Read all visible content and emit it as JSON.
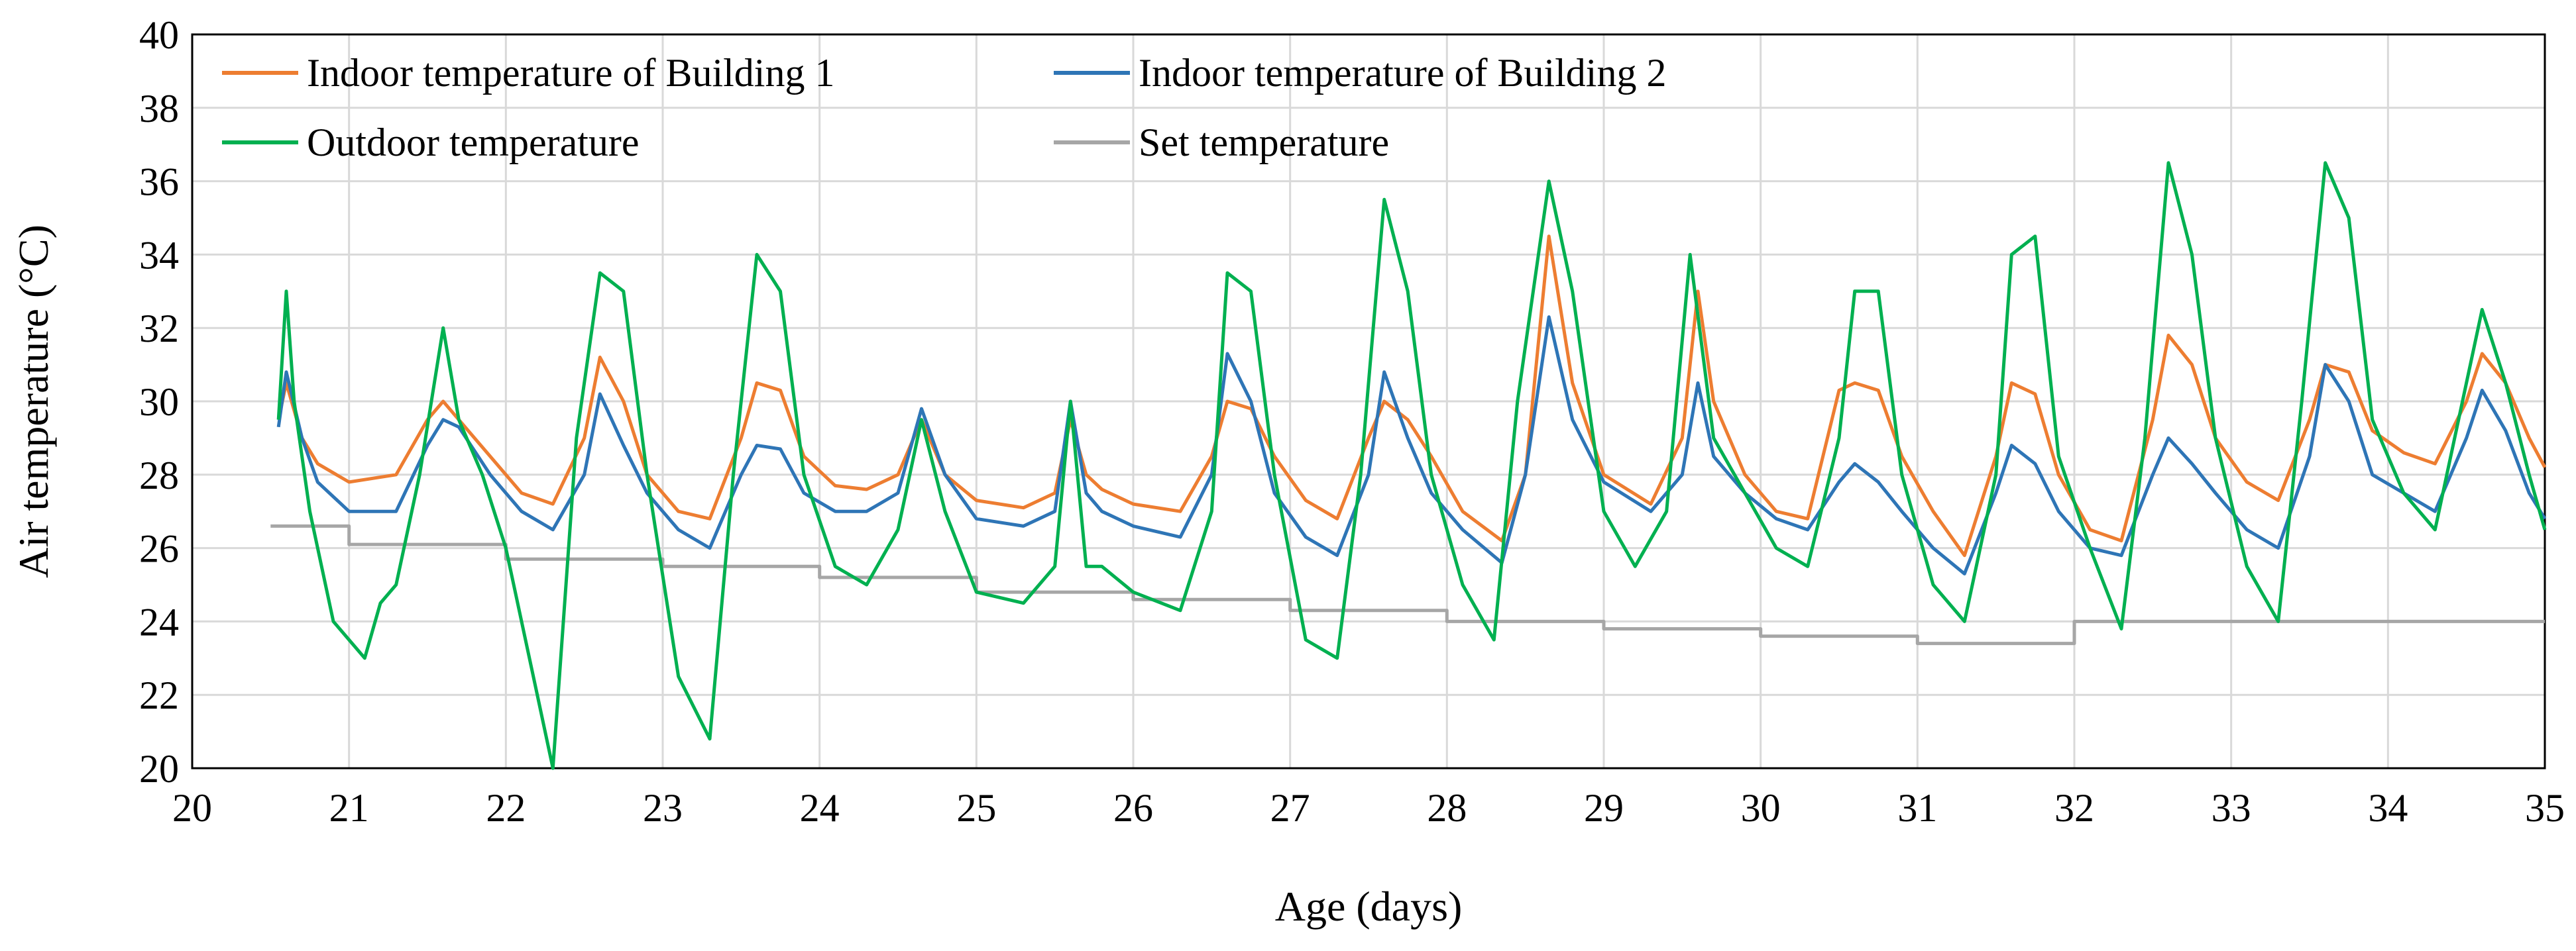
{
  "chart_data": {
    "type": "line",
    "xlabel": "Age (days)",
    "ylabel": "Air temperature (°C)",
    "xlim": [
      20,
      35
    ],
    "ylim": [
      20,
      40
    ],
    "x_ticks": [
      20,
      21,
      22,
      23,
      24,
      25,
      26,
      27,
      28,
      29,
      30,
      31,
      32,
      33,
      34,
      35
    ],
    "y_ticks": [
      20,
      22,
      24,
      26,
      28,
      30,
      32,
      34,
      36,
      38,
      40
    ],
    "grid": true,
    "legend_position": "top-left",
    "series": [
      {
        "name": "Indoor temperature of Building 1",
        "color": "#ED7D31",
        "x": [
          20.55,
          20.6,
          20.7,
          20.8,
          21.0,
          21.3,
          21.5,
          21.6,
          21.7,
          21.9,
          22.1,
          22.3,
          22.5,
          22.6,
          22.75,
          22.9,
          23.1,
          23.3,
          23.5,
          23.6,
          23.75,
          23.9,
          24.1,
          24.3,
          24.5,
          24.65,
          24.8,
          25.0,
          25.3,
          25.5,
          25.6,
          25.7,
          25.8,
          26.0,
          26.3,
          26.5,
          26.6,
          26.75,
          26.9,
          27.1,
          27.3,
          27.5,
          27.6,
          27.75,
          27.9,
          28.1,
          28.35,
          28.5,
          28.65,
          28.8,
          29.0,
          29.3,
          29.5,
          29.6,
          29.7,
          29.9,
          30.1,
          30.3,
          30.5,
          30.6,
          30.75,
          30.9,
          31.1,
          31.3,
          31.5,
          31.6,
          31.75,
          31.9,
          32.1,
          32.3,
          32.5,
          32.6,
          32.75,
          32.9,
          33.1,
          33.3,
          33.5,
          33.6,
          33.75,
          33.9,
          34.1,
          34.3,
          34.5,
          34.6,
          34.75,
          34.9,
          35.0
        ],
        "y": [
          29.5,
          30.5,
          29.0,
          28.3,
          27.8,
          28.0,
          29.5,
          30.0,
          29.5,
          28.5,
          27.5,
          27.2,
          29.0,
          31.2,
          30.0,
          28.0,
          27.0,
          26.8,
          29.0,
          30.5,
          30.3,
          28.5,
          27.7,
          27.6,
          28.0,
          29.5,
          28.0,
          27.3,
          27.1,
          27.5,
          29.5,
          28.0,
          27.6,
          27.2,
          27.0,
          28.5,
          30.0,
          29.8,
          28.5,
          27.3,
          26.8,
          29.0,
          30.0,
          29.5,
          28.5,
          27.0,
          26.2,
          28.0,
          34.5,
          30.5,
          28.0,
          27.2,
          29.0,
          33.0,
          30.0,
          28.0,
          27.0,
          26.8,
          30.3,
          30.5,
          30.3,
          28.5,
          27.0,
          25.8,
          28.5,
          30.5,
          30.2,
          28.0,
          26.5,
          26.2,
          29.5,
          31.8,
          31.0,
          29.0,
          27.8,
          27.3,
          29.5,
          31.0,
          30.8,
          29.2,
          28.6,
          28.3,
          30.0,
          31.3,
          30.5,
          29.0,
          28.2
        ]
      },
      {
        "name": "Indoor temperature of Building 2",
        "color": "#2E75B6",
        "x": [
          20.55,
          20.6,
          20.7,
          20.8,
          21.0,
          21.3,
          21.5,
          21.6,
          21.7,
          21.9,
          22.1,
          22.3,
          22.5,
          22.6,
          22.75,
          22.9,
          23.1,
          23.3,
          23.5,
          23.6,
          23.75,
          23.9,
          24.1,
          24.3,
          24.5,
          24.65,
          24.8,
          25.0,
          25.3,
          25.5,
          25.6,
          25.7,
          25.8,
          26.0,
          26.3,
          26.5,
          26.6,
          26.75,
          26.9,
          27.1,
          27.3,
          27.5,
          27.6,
          27.75,
          27.9,
          28.1,
          28.35,
          28.5,
          28.65,
          28.8,
          29.0,
          29.3,
          29.5,
          29.6,
          29.7,
          29.9,
          30.1,
          30.3,
          30.5,
          30.6,
          30.75,
          30.9,
          31.1,
          31.3,
          31.5,
          31.6,
          31.75,
          31.9,
          32.1,
          32.3,
          32.5,
          32.6,
          32.75,
          32.9,
          33.1,
          33.3,
          33.5,
          33.6,
          33.75,
          33.9,
          34.1,
          34.3,
          34.5,
          34.6,
          34.75,
          34.9,
          35.0
        ],
        "y": [
          29.3,
          30.8,
          29.0,
          27.8,
          27.0,
          27.0,
          28.8,
          29.5,
          29.3,
          28.0,
          27.0,
          26.5,
          28.0,
          30.2,
          28.8,
          27.5,
          26.5,
          26.0,
          28.0,
          28.8,
          28.7,
          27.5,
          27.0,
          27.0,
          27.5,
          29.8,
          28.0,
          26.8,
          26.6,
          27.0,
          30.0,
          27.5,
          27.0,
          26.6,
          26.3,
          28.0,
          31.3,
          30.0,
          27.5,
          26.3,
          25.8,
          28.0,
          30.8,
          29.0,
          27.5,
          26.5,
          25.6,
          28.0,
          32.3,
          29.5,
          27.8,
          27.0,
          28.0,
          30.5,
          28.5,
          27.5,
          26.8,
          26.5,
          27.8,
          28.3,
          27.8,
          27.0,
          26.0,
          25.3,
          27.5,
          28.8,
          28.3,
          27.0,
          26.0,
          25.8,
          28.0,
          29.0,
          28.3,
          27.5,
          26.5,
          26.0,
          28.5,
          31.0,
          30.0,
          28.0,
          27.5,
          27.0,
          29.0,
          30.3,
          29.2,
          27.5,
          26.8
        ]
      },
      {
        "name": "Outdoor temperature",
        "color": "#00B050",
        "x": [
          20.55,
          20.6,
          20.65,
          20.75,
          20.9,
          21.1,
          21.2,
          21.3,
          21.45,
          21.6,
          21.7,
          21.85,
          22.0,
          22.2,
          22.3,
          22.45,
          22.6,
          22.75,
          22.9,
          23.1,
          23.3,
          23.45,
          23.6,
          23.75,
          23.9,
          24.1,
          24.3,
          24.5,
          24.65,
          24.8,
          25.0,
          25.3,
          25.5,
          25.6,
          25.7,
          25.8,
          26.0,
          26.3,
          26.5,
          26.6,
          26.75,
          26.9,
          27.1,
          27.3,
          27.45,
          27.6,
          27.75,
          27.9,
          28.1,
          28.3,
          28.45,
          28.65,
          28.8,
          29.0,
          29.2,
          29.4,
          29.55,
          29.7,
          29.9,
          30.1,
          30.3,
          30.5,
          30.6,
          30.75,
          30.9,
          31.1,
          31.3,
          31.5,
          31.6,
          31.75,
          31.9,
          32.1,
          32.3,
          32.45,
          32.6,
          32.75,
          32.9,
          33.1,
          33.3,
          33.45,
          33.6,
          33.75,
          33.9,
          34.1,
          34.3,
          34.45,
          34.6,
          34.75,
          34.9,
          35.0
        ],
        "y": [
          29.5,
          33.0,
          30.0,
          27.0,
          24.0,
          23.0,
          24.5,
          25.0,
          28.0,
          32.0,
          29.5,
          28.0,
          26.0,
          22.0,
          20.0,
          29.0,
          33.5,
          33.0,
          28.0,
          22.5,
          20.8,
          28.0,
          34.0,
          33.0,
          28.0,
          25.5,
          25.0,
          26.5,
          29.5,
          27.0,
          24.8,
          24.5,
          25.5,
          30.0,
          25.5,
          25.5,
          24.8,
          24.3,
          27.0,
          33.5,
          33.0,
          28.0,
          23.5,
          23.0,
          28.0,
          35.5,
          33.0,
          28.0,
          25.0,
          23.5,
          30.0,
          36.0,
          33.0,
          27.0,
          25.5,
          27.0,
          34.0,
          29.0,
          27.5,
          26.0,
          25.5,
          29.0,
          33.0,
          33.0,
          28.0,
          25.0,
          24.0,
          28.0,
          34.0,
          34.5,
          28.5,
          26.0,
          23.8,
          29.0,
          36.5,
          34.0,
          29.0,
          25.5,
          24.0,
          30.0,
          36.5,
          35.0,
          29.5,
          27.5,
          26.5,
          29.5,
          32.5,
          30.5,
          28.0,
          26.5
        ]
      },
      {
        "name": "Set temperature",
        "color": "#A6A6A6",
        "x": [
          20.5,
          21.0,
          21.0,
          22.0,
          22.0,
          23.0,
          23.0,
          24.0,
          24.0,
          25.0,
          25.0,
          26.0,
          26.0,
          27.0,
          27.0,
          28.0,
          28.0,
          29.0,
          29.0,
          30.0,
          30.0,
          31.0,
          31.0,
          32.0,
          32.0,
          35.0
        ],
        "y": [
          26.6,
          26.6,
          26.1,
          26.1,
          25.7,
          25.7,
          25.5,
          25.5,
          25.2,
          25.2,
          24.8,
          24.8,
          24.6,
          24.6,
          24.3,
          24.3,
          24.0,
          24.0,
          23.8,
          23.8,
          23.6,
          23.6,
          23.4,
          23.4,
          24.0,
          24.0
        ]
      }
    ]
  }
}
